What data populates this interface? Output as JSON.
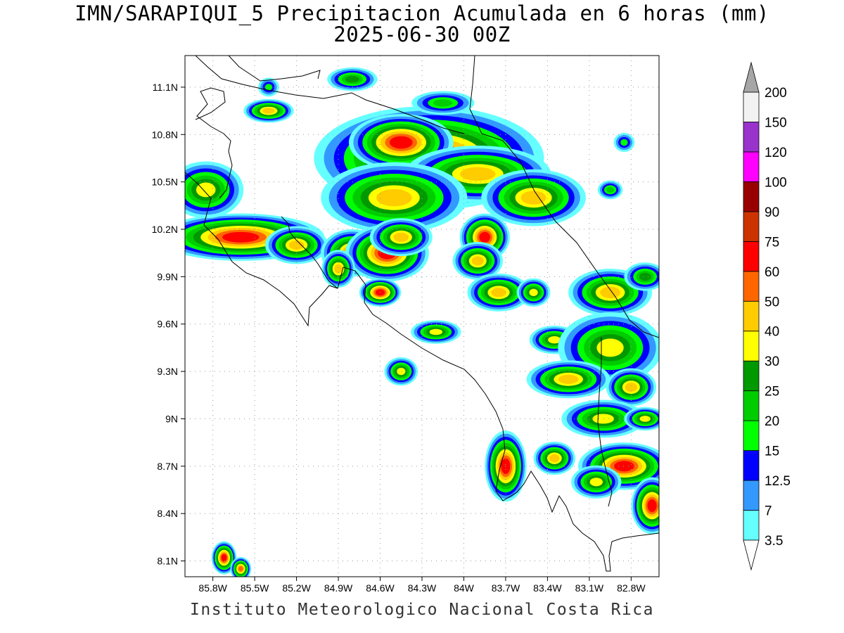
{
  "title": {
    "line1": "IMN/SARAPIQUI_5 Precipitacion Acumulada en 6 horas (mm)",
    "line2": "2025-06-30 00Z"
  },
  "footer": "Instituto Meteorologico Nacional Costa Rica",
  "map": {
    "lon_range": [
      -86.0,
      -82.6
    ],
    "lat_range": [
      8.0,
      11.3
    ],
    "lon_ticks": [
      "85.8W",
      "85.5W",
      "85.2W",
      "84.9W",
      "84.6W",
      "84.3W",
      "84W",
      "83.7W",
      "83.4W",
      "83.1W",
      "82.8W"
    ],
    "lon_values": [
      -85.8,
      -85.5,
      -85.2,
      -84.9,
      -84.6,
      -84.3,
      -84.0,
      -83.7,
      -83.4,
      -83.1,
      -82.8
    ],
    "lat_ticks": [
      "8.1N",
      "8.4N",
      "8.7N",
      "9N",
      "9.3N",
      "9.6N",
      "9.9N",
      "10.2N",
      "10.5N",
      "10.8N",
      "11.1N"
    ],
    "lat_values": [
      8.1,
      8.4,
      8.7,
      9.0,
      9.3,
      9.6,
      9.9,
      10.2,
      10.5,
      10.8,
      11.1
    ],
    "grid": true,
    "rain_cells": [
      {
        "lon": -84.25,
        "lat": 10.65,
        "rx": 0.55,
        "ry": 0.22,
        "max_mm": 60
      },
      {
        "lon": -84.45,
        "lat": 10.75,
        "rx": 0.25,
        "ry": 0.12,
        "max_mm": 60
      },
      {
        "lon": -83.9,
        "lat": 10.55,
        "rx": 0.35,
        "ry": 0.12,
        "max_mm": 40
      },
      {
        "lon": -84.5,
        "lat": 10.4,
        "rx": 0.35,
        "ry": 0.15,
        "max_mm": 40
      },
      {
        "lon": -83.5,
        "lat": 10.4,
        "rx": 0.25,
        "ry": 0.12,
        "max_mm": 40
      },
      {
        "lon": -85.6,
        "lat": 10.15,
        "rx": 0.4,
        "ry": 0.1,
        "max_mm": 60
      },
      {
        "lon": -85.85,
        "lat": 10.45,
        "rx": 0.18,
        "ry": 0.12,
        "max_mm": 30
      },
      {
        "lon": -85.2,
        "lat": 10.1,
        "rx": 0.15,
        "ry": 0.08,
        "max_mm": 40
      },
      {
        "lon": -84.8,
        "lat": 10.05,
        "rx": 0.15,
        "ry": 0.1,
        "max_mm": 50
      },
      {
        "lon": -84.55,
        "lat": 10.05,
        "rx": 0.2,
        "ry": 0.12,
        "max_mm": 60
      },
      {
        "lon": -83.85,
        "lat": 10.15,
        "rx": 0.12,
        "ry": 0.1,
        "max_mm": 60
      },
      {
        "lon": -83.9,
        "lat": 10.0,
        "rx": 0.12,
        "ry": 0.08,
        "max_mm": 40
      },
      {
        "lon": -84.45,
        "lat": 10.15,
        "rx": 0.15,
        "ry": 0.08,
        "max_mm": 40
      },
      {
        "lon": -84.9,
        "lat": 9.95,
        "rx": 0.08,
        "ry": 0.08,
        "max_mm": 40
      },
      {
        "lon": -84.6,
        "lat": 9.8,
        "rx": 0.1,
        "ry": 0.06,
        "max_mm": 60
      },
      {
        "lon": -83.75,
        "lat": 9.8,
        "rx": 0.15,
        "ry": 0.08,
        "max_mm": 40
      },
      {
        "lon": -83.5,
        "lat": 9.8,
        "rx": 0.08,
        "ry": 0.06,
        "max_mm": 30
      },
      {
        "lon": -82.95,
        "lat": 9.8,
        "rx": 0.2,
        "ry": 0.1,
        "max_mm": 40
      },
      {
        "lon": -82.7,
        "lat": 9.9,
        "rx": 0.1,
        "ry": 0.06,
        "max_mm": 25
      },
      {
        "lon": -84.2,
        "lat": 9.55,
        "rx": 0.12,
        "ry": 0.05,
        "max_mm": 30
      },
      {
        "lon": -84.45,
        "lat": 9.3,
        "rx": 0.08,
        "ry": 0.06,
        "max_mm": 30
      },
      {
        "lon": -83.35,
        "lat": 9.5,
        "rx": 0.12,
        "ry": 0.06,
        "max_mm": 30
      },
      {
        "lon": -82.95,
        "lat": 9.45,
        "rx": 0.25,
        "ry": 0.15,
        "max_mm": 30
      },
      {
        "lon": -83.25,
        "lat": 9.25,
        "rx": 0.2,
        "ry": 0.08,
        "max_mm": 40
      },
      {
        "lon": -82.8,
        "lat": 9.2,
        "rx": 0.12,
        "ry": 0.08,
        "max_mm": 40
      },
      {
        "lon": -83.0,
        "lat": 9.0,
        "rx": 0.2,
        "ry": 0.08,
        "max_mm": 30
      },
      {
        "lon": -82.7,
        "lat": 9.0,
        "rx": 0.1,
        "ry": 0.05,
        "max_mm": 30
      },
      {
        "lon": -83.7,
        "lat": 8.7,
        "rx": 0.1,
        "ry": 0.15,
        "max_mm": 60
      },
      {
        "lon": -83.35,
        "lat": 8.75,
        "rx": 0.1,
        "ry": 0.07,
        "max_mm": 40
      },
      {
        "lon": -82.85,
        "lat": 8.7,
        "rx": 0.22,
        "ry": 0.1,
        "max_mm": 60
      },
      {
        "lon": -82.65,
        "lat": 8.45,
        "rx": 0.1,
        "ry": 0.12,
        "max_mm": 60
      },
      {
        "lon": -83.05,
        "lat": 8.6,
        "rx": 0.12,
        "ry": 0.07,
        "max_mm": 30
      },
      {
        "lon": -85.72,
        "lat": 8.12,
        "rx": 0.06,
        "ry": 0.07,
        "max_mm": 60
      },
      {
        "lon": -85.6,
        "lat": 8.05,
        "rx": 0.05,
        "ry": 0.05,
        "max_mm": 50
      },
      {
        "lon": -85.4,
        "lat": 10.95,
        "rx": 0.12,
        "ry": 0.05,
        "max_mm": 40
      },
      {
        "lon": -84.8,
        "lat": 11.15,
        "rx": 0.12,
        "ry": 0.05,
        "max_mm": 25
      },
      {
        "lon": -85.4,
        "lat": 11.1,
        "rx": 0.05,
        "ry": 0.04,
        "max_mm": 15
      },
      {
        "lon": -84.15,
        "lat": 11.0,
        "rx": 0.15,
        "ry": 0.05,
        "max_mm": 20
      },
      {
        "lon": -82.95,
        "lat": 10.45,
        "rx": 0.06,
        "ry": 0.04,
        "max_mm": 20
      },
      {
        "lon": -82.85,
        "lat": 10.75,
        "rx": 0.05,
        "ry": 0.04,
        "max_mm": 15
      }
    ]
  },
  "colorbar": {
    "levels": [
      "3.5",
      "7",
      "12.5",
      "15",
      "20",
      "25",
      "30",
      "40",
      "50",
      "60",
      "75",
      "90",
      "100",
      "120",
      "150",
      "200"
    ],
    "colors": [
      "#66ffff",
      "#3399ff",
      "#0000ff",
      "#00ff00",
      "#00cc00",
      "#009900",
      "#ffff00",
      "#ffcc00",
      "#ff6600",
      "#ff0000",
      "#cc3300",
      "#990000",
      "#ff00ff",
      "#9933cc",
      "#f2f2f2",
      "#a6a6a6"
    ]
  },
  "style": {
    "background": "#ffffff",
    "coastline": "#000000",
    "grid": "#9a9a9a"
  }
}
